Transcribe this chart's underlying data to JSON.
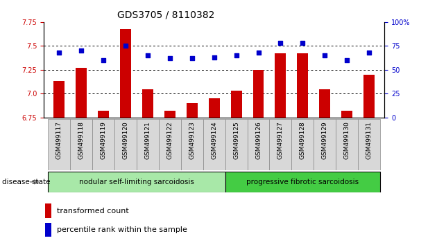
{
  "title": "GDS3705 / 8110382",
  "samples": [
    "GSM499117",
    "GSM499118",
    "GSM499119",
    "GSM499120",
    "GSM499121",
    "GSM499122",
    "GSM499123",
    "GSM499124",
    "GSM499125",
    "GSM499126",
    "GSM499127",
    "GSM499128",
    "GSM499129",
    "GSM499130",
    "GSM499131"
  ],
  "bar_values": [
    7.13,
    7.27,
    6.82,
    7.68,
    7.05,
    6.82,
    6.9,
    6.95,
    7.03,
    7.25,
    7.42,
    7.42,
    7.05,
    6.82,
    7.2
  ],
  "dot_values": [
    68,
    70,
    60,
    75,
    65,
    62,
    62,
    63,
    65,
    68,
    78,
    78,
    65,
    60,
    68
  ],
  "ylim_left": [
    6.75,
    7.75
  ],
  "ylim_right": [
    0,
    100
  ],
  "yticks_left": [
    6.75,
    7.0,
    7.25,
    7.5,
    7.75
  ],
  "yticks_right": [
    0,
    25,
    50,
    75,
    100
  ],
  "bar_color": "#cc0000",
  "dot_color": "#0000cc",
  "grid_lines": [
    7.0,
    7.25,
    7.5
  ],
  "group1_label": "nodular self-limiting sarcoidosis",
  "group1_count": 8,
  "group2_label": "progressive fibrotic sarcoidosis",
  "group2_count": 7,
  "group1_color": "#a8e8a8",
  "group2_color": "#44cc44",
  "disease_state_label": "disease state",
  "legend_bar_label": "transformed count",
  "legend_dot_label": "percentile rank within the sample",
  "title_fontsize": 10,
  "tick_fontsize": 7,
  "label_fontsize": 7.5
}
